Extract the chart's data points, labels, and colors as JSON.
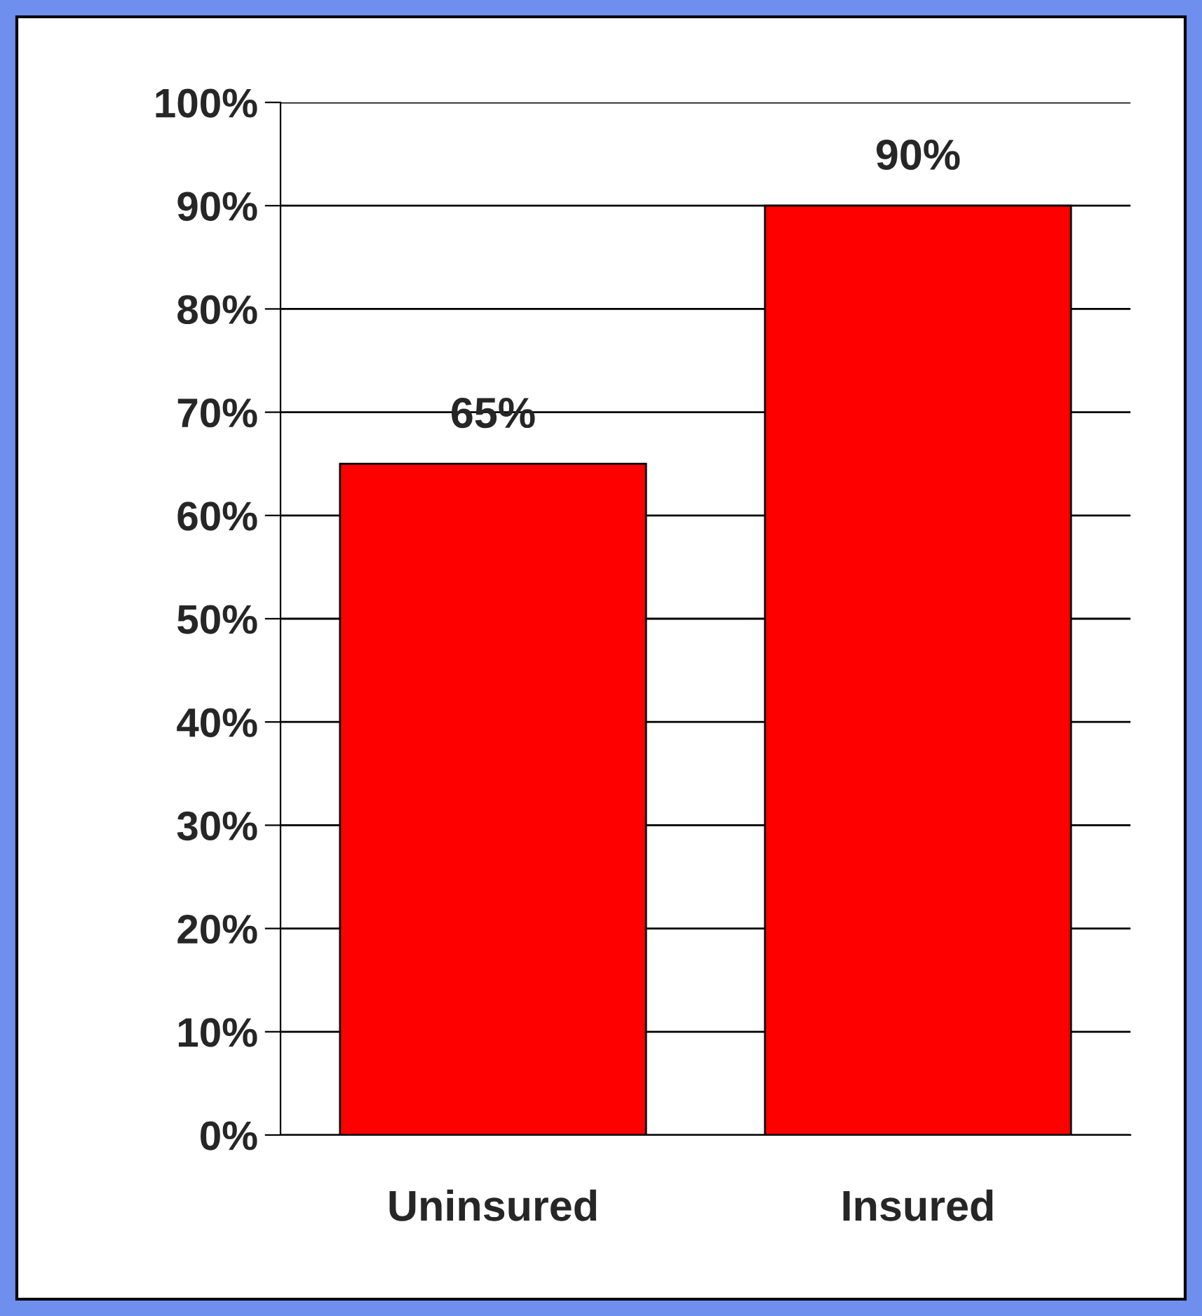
{
  "chart_data": {
    "type": "bar",
    "categories": [
      "Uninsured",
      "Insured"
    ],
    "values": [
      65,
      90
    ],
    "color": "#ff0000",
    "value_labels": [
      "65%",
      "90%"
    ],
    "ylim": [
      0,
      100
    ],
    "yticks": [
      {
        "value": 0,
        "label": "0%"
      },
      {
        "value": 10,
        "label": "10%"
      },
      {
        "value": 20,
        "label": "20%"
      },
      {
        "value": 30,
        "label": "30%"
      },
      {
        "value": 40,
        "label": "40%"
      },
      {
        "value": 50,
        "label": "50%"
      },
      {
        "value": 60,
        "label": "60%"
      },
      {
        "value": 70,
        "label": "70%"
      },
      {
        "value": 80,
        "label": "80%"
      },
      {
        "value": 90,
        "label": "90%"
      },
      {
        "value": 100,
        "label": "100%"
      }
    ],
    "grid": "y"
  }
}
